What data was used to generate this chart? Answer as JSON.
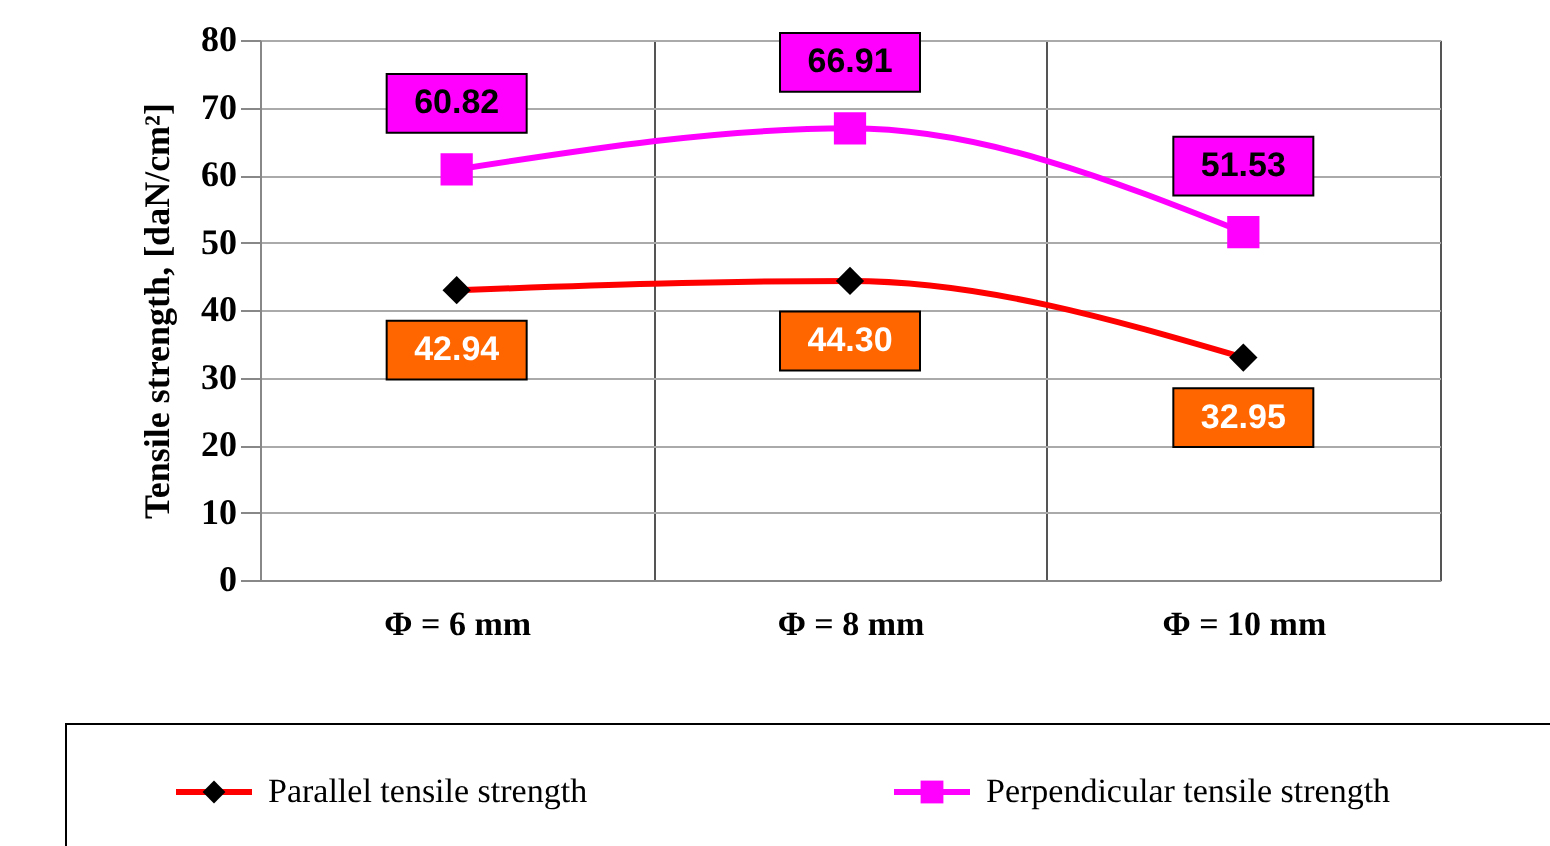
{
  "chart_data": {
    "type": "line",
    "ylabel": "Tensile strength, [daN/cm²]",
    "categories": [
      "Φ = 6 mm",
      "Φ = 8 mm",
      "Φ = 10 mm"
    ],
    "series": [
      {
        "name": "Parallel tensile strength",
        "color": "#ff0000",
        "marker": "diamond",
        "values": [
          42.94,
          44.3,
          32.95
        ],
        "value_labels": [
          "42.94",
          "44.30",
          "32.95"
        ]
      },
      {
        "name": "Perpendicular tensile strength",
        "color": "#ff00ff",
        "marker": "square",
        "values": [
          60.82,
          66.91,
          51.53
        ],
        "value_labels": [
          "60.82",
          "66.91",
          "51.53"
        ]
      }
    ],
    "ylim": [
      0,
      80
    ],
    "yticks": [
      0,
      10,
      20,
      30,
      40,
      50,
      60,
      70,
      80
    ],
    "grid": true,
    "legend": "bottom"
  }
}
